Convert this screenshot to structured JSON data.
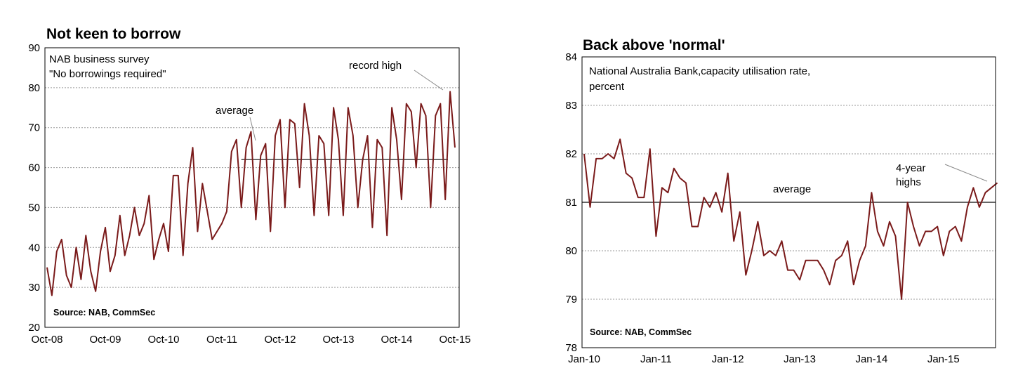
{
  "chart_data": [
    {
      "type": "line",
      "title": "Not keen to borrow",
      "subtitle_lines": [
        "NAB business survey",
        "\"No borrowings required\""
      ],
      "source": "Source: NAB, CommSec",
      "ylim": [
        20,
        90
      ],
      "yticks": [
        20,
        30,
        40,
        50,
        60,
        70,
        80,
        90
      ],
      "xtick_labels": [
        "Oct-08",
        "Oct-09",
        "Oct-10",
        "Oct-11",
        "Oct-12",
        "Oct-13",
        "Oct-14",
        "Oct-15"
      ],
      "x_start": "Oct-08",
      "x_end": "Oct-15",
      "frequency": "monthly",
      "average": 62,
      "average_from": "Feb-12",
      "annotations": {
        "average": "average",
        "record_high": "record high"
      },
      "series": [
        {
          "values": [
            35,
            28,
            39,
            42,
            33,
            30,
            40,
            32,
            43,
            34,
            29,
            39,
            45,
            34,
            38,
            48,
            38,
            43,
            50,
            43,
            46,
            53,
            37,
            42,
            46,
            39,
            58,
            58,
            38,
            56,
            65,
            44,
            56,
            49,
            42,
            44,
            46,
            49,
            64,
            67,
            50,
            65,
            69,
            47,
            63,
            66,
            44,
            68,
            72,
            50,
            72,
            71,
            55,
            76,
            68,
            48,
            68,
            66,
            48,
            75,
            67,
            48,
            75,
            68,
            50,
            62,
            68,
            45,
            67,
            65,
            43,
            75,
            67,
            52,
            76,
            74,
            60,
            76,
            73,
            50,
            73,
            76,
            52,
            79,
            65
          ]
        }
      ]
    },
    {
      "type": "line",
      "title": "Back above 'normal'",
      "subtitle_lines": [
        "National Australia Bank,capacity utilisation rate,",
        "percent"
      ],
      "source": "Source: NAB, CommSec",
      "ylim": [
        78,
        84
      ],
      "yticks": [
        78,
        79,
        80,
        81,
        82,
        83,
        84
      ],
      "xtick_labels": [
        "Jan-10",
        "Jan-11",
        "Jan-12",
        "Jan-13",
        "Jan-14",
        "Jan-15"
      ],
      "x_start": "Jan-10",
      "x_end": "Sep-15",
      "frequency": "monthly",
      "average": 81,
      "annotations": {
        "average": "average",
        "highs_lines": [
          "4-year",
          "highs"
        ]
      },
      "series": [
        {
          "values": [
            82.0,
            80.9,
            81.9,
            81.9,
            82.0,
            81.9,
            82.3,
            81.6,
            81.5,
            81.1,
            81.1,
            82.1,
            80.3,
            81.3,
            81.2,
            81.7,
            81.5,
            81.4,
            80.5,
            80.5,
            81.1,
            80.9,
            81.2,
            80.8,
            81.6,
            80.2,
            80.8,
            79.5,
            80.0,
            80.6,
            79.9,
            80.0,
            79.9,
            80.2,
            79.6,
            79.6,
            79.4,
            79.8,
            79.8,
            79.8,
            79.6,
            79.3,
            79.8,
            79.9,
            80.2,
            79.3,
            79.8,
            80.1,
            81.2,
            80.4,
            80.1,
            80.6,
            80.3,
            79.0,
            81.0,
            80.5,
            80.1,
            80.4,
            80.4,
            80.5,
            79.9,
            80.4,
            80.5,
            80.2,
            80.9,
            81.3,
            80.9,
            81.2,
            81.3,
            81.4
          ]
        }
      ]
    }
  ]
}
